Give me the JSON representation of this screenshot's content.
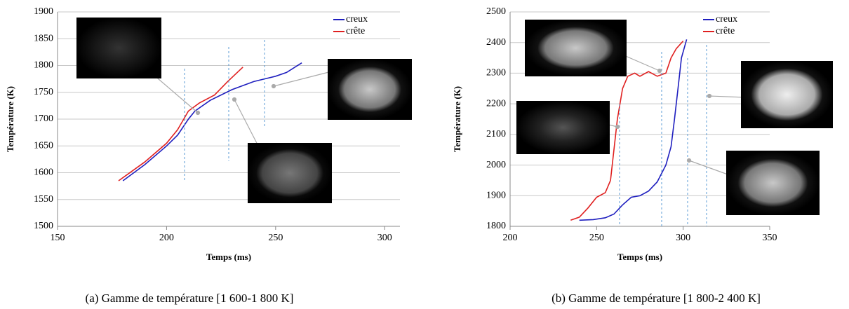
{
  "chart_data": [
    {
      "type": "line",
      "caption": "(a)  Gamme de température [1 600-1 800 K]",
      "x_label": "Temps (ms)",
      "y_label": "Température (K)",
      "xlim": [
        150,
        307
      ],
      "xticks": [
        150,
        200,
        250,
        300
      ],
      "ylim": [
        1500,
        1900
      ],
      "yticks": [
        1500,
        1550,
        1600,
        1650,
        1700,
        1750,
        1800,
        1850,
        1900
      ],
      "grid": true,
      "legend": "upper right",
      "series": [
        {
          "name": "creux",
          "color": "#1f1fbf",
          "x": [
            180,
            190,
            200,
            205,
            210,
            213,
            220,
            230,
            240,
            250,
            255,
            262
          ],
          "values": [
            1585,
            1615,
            1650,
            1670,
            1700,
            1715,
            1735,
            1755,
            1770,
            1780,
            1787,
            1805
          ]
        },
        {
          "name": "crête",
          "color": "#e02020",
          "x": [
            178,
            190,
            200,
            205,
            210,
            215,
            222,
            228,
            235
          ],
          "values": [
            1585,
            1620,
            1655,
            1680,
            1715,
            1730,
            1745,
            1770,
            1797
          ]
        }
      ]
    },
    {
      "type": "line",
      "caption": "(b)  Gamme de température [1 800-2 400 K]",
      "x_label": "Temps (ms)",
      "y_label": "Température (K)",
      "xlim": [
        200,
        350
      ],
      "xticks": [
        200,
        250,
        300,
        350
      ],
      "ylim": [
        1800,
        2500
      ],
      "yticks": [
        1800,
        1900,
        2000,
        2100,
        2200,
        2300,
        2400,
        2500
      ],
      "grid": true,
      "legend": "upper right",
      "series": [
        {
          "name": "creux",
          "color": "#1f1fbf",
          "x": [
            240,
            248,
            255,
            260,
            265,
            270,
            275,
            280,
            285,
            290,
            293,
            295,
            297,
            299,
            302
          ],
          "values": [
            1820,
            1822,
            1828,
            1840,
            1870,
            1895,
            1900,
            1915,
            1945,
            2000,
            2060,
            2150,
            2250,
            2350,
            2410
          ]
        },
        {
          "name": "crête",
          "color": "#e02020",
          "x": [
            235,
            240,
            245,
            250,
            255,
            258,
            260,
            262,
            265,
            268,
            272,
            275,
            280,
            285,
            290,
            293,
            296,
            300
          ],
          "values": [
            1820,
            1830,
            1860,
            1895,
            1910,
            1950,
            2050,
            2150,
            2250,
            2290,
            2300,
            2290,
            2305,
            2290,
            2300,
            2350,
            2380,
            2405
          ]
        }
      ]
    }
  ]
}
